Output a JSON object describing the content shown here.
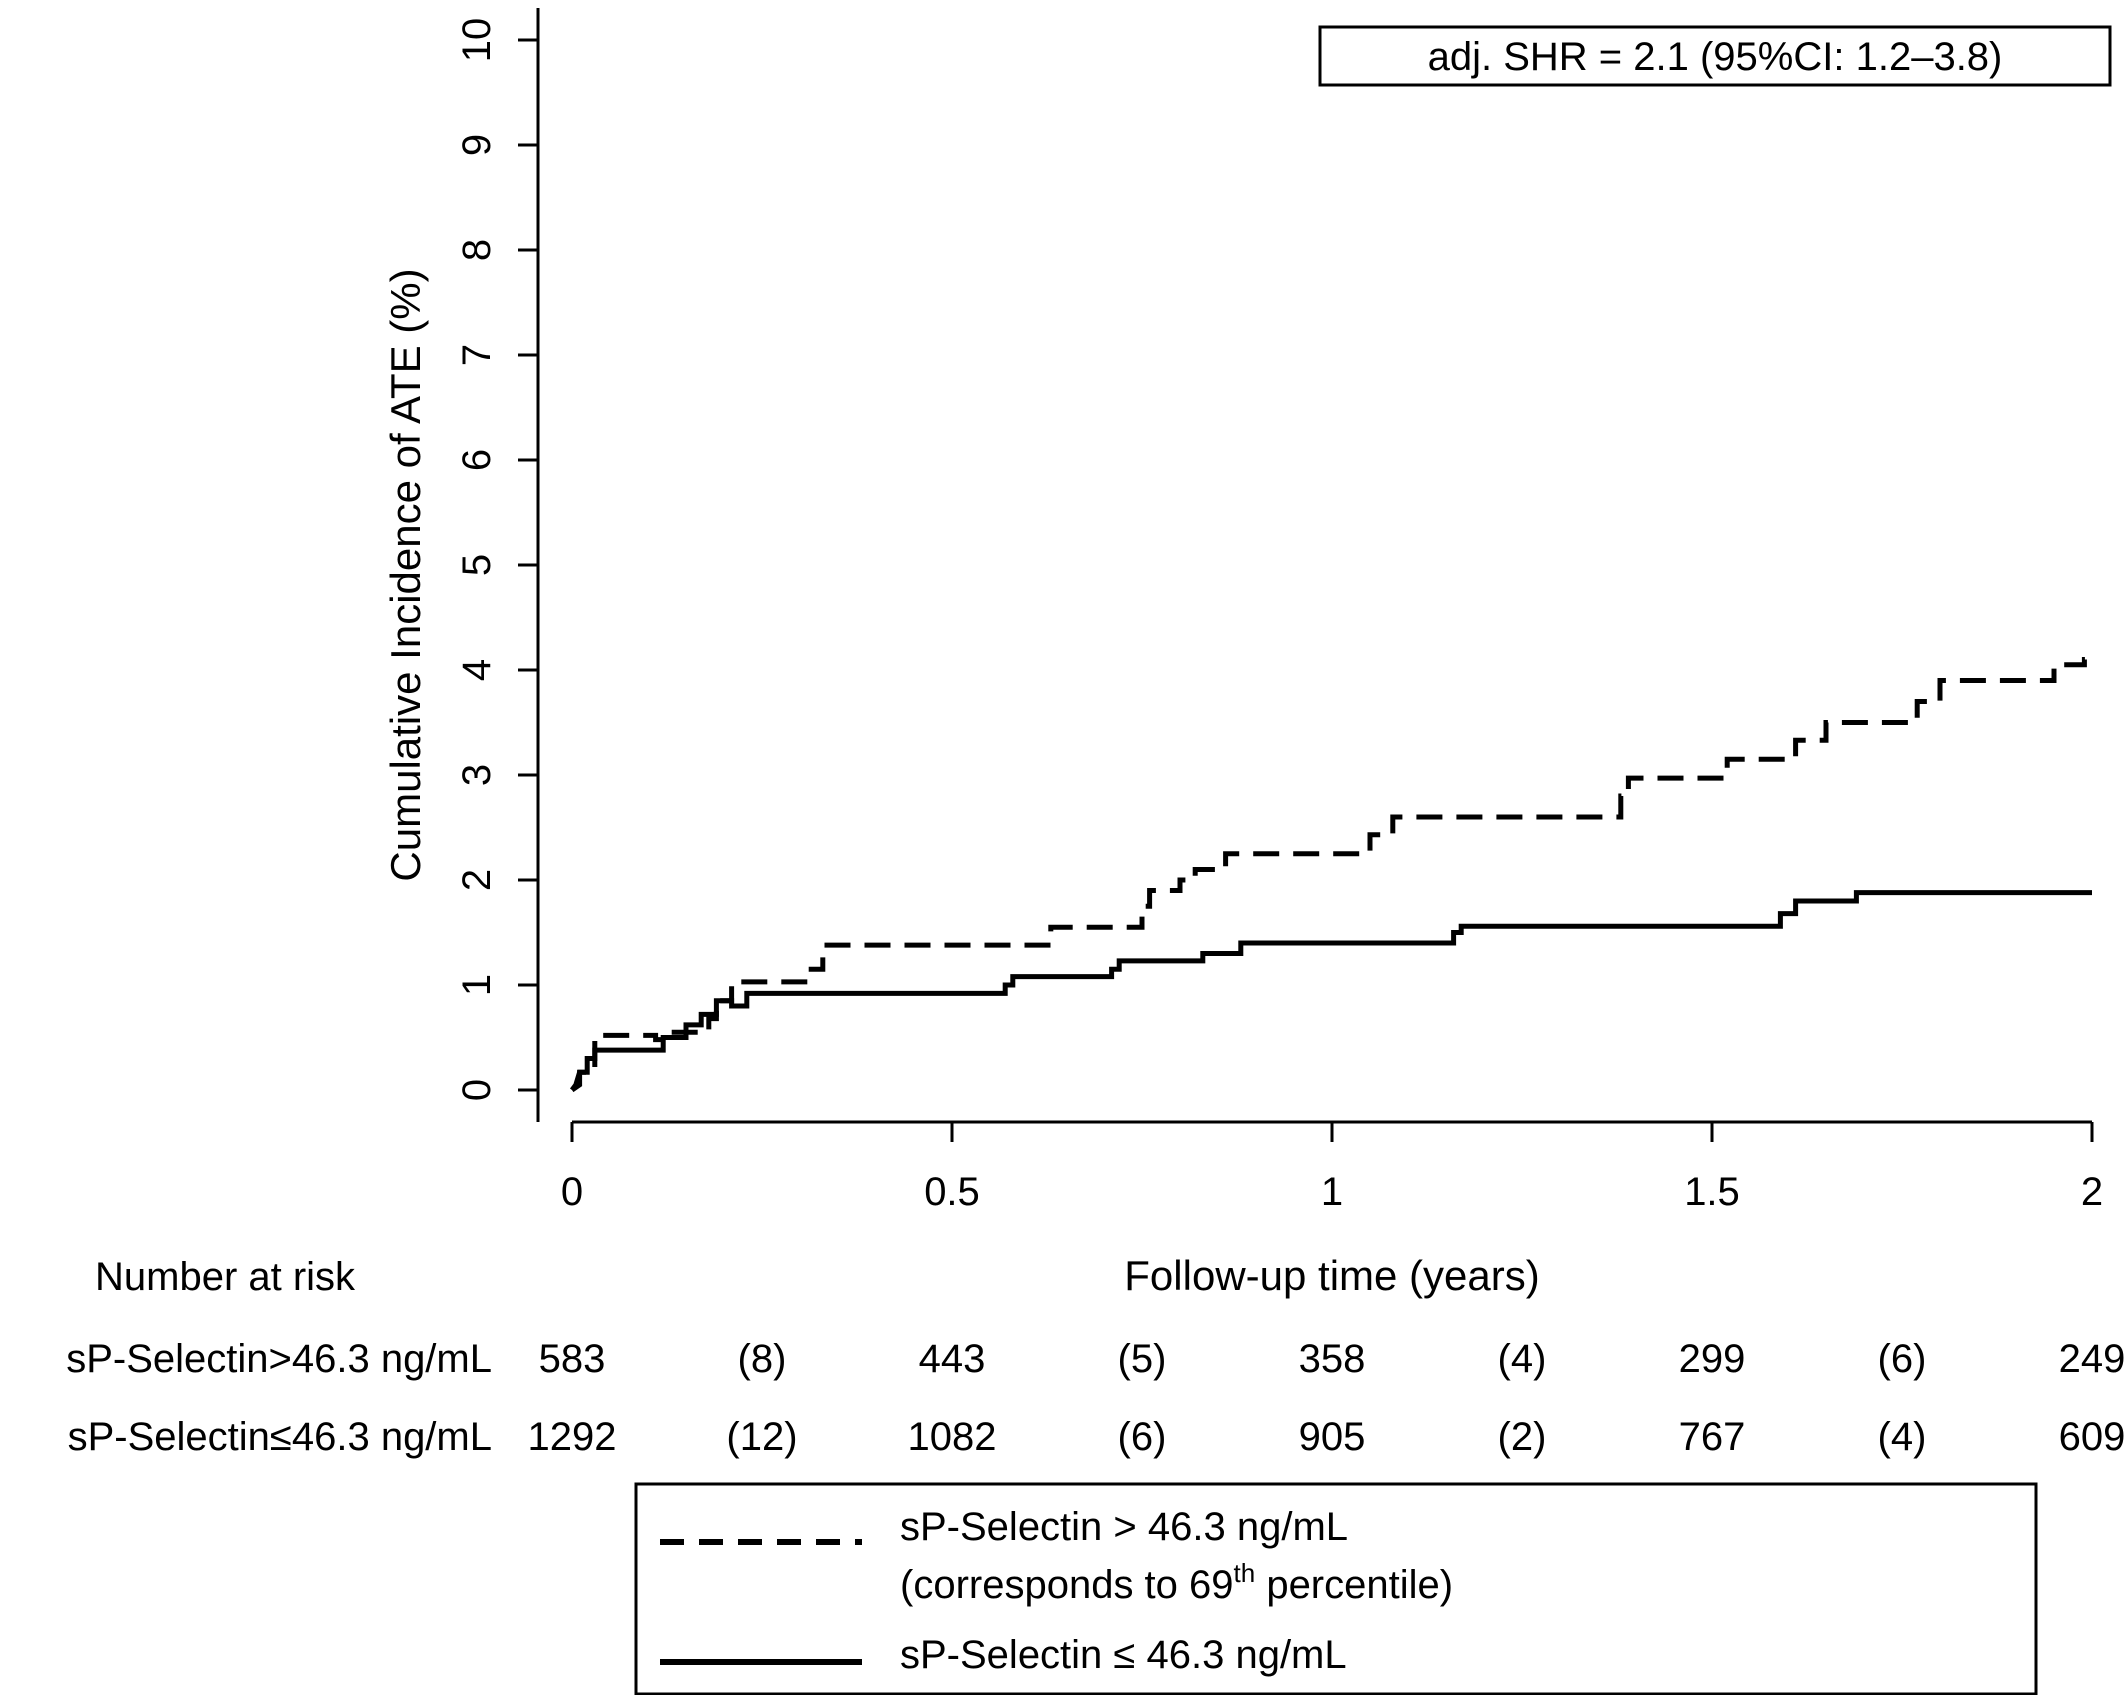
{
  "chart_data": {
    "type": "line",
    "title": "",
    "xlabel": "Follow-up time (years)",
    "ylabel": "Cumulative Incidence of ATE (%)",
    "xlim": [
      0,
      2
    ],
    "ylim": [
      0,
      10
    ],
    "xticks": [
      {
        "value": 0,
        "label": "0"
      },
      {
        "value": 0.5,
        "label": "0.5"
      },
      {
        "value": 1,
        "label": "1"
      },
      {
        "value": 1.5,
        "label": "1.5"
      },
      {
        "value": 2,
        "label": "2"
      }
    ],
    "yticks": [
      {
        "value": 0,
        "label": "0"
      },
      {
        "value": 1,
        "label": "1"
      },
      {
        "value": 2,
        "label": "2"
      },
      {
        "value": 3,
        "label": "3"
      },
      {
        "value": 4,
        "label": "4"
      },
      {
        "value": 5,
        "label": "5"
      },
      {
        "value": 6,
        "label": "6"
      },
      {
        "value": 7,
        "label": "7"
      },
      {
        "value": 8,
        "label": "8"
      },
      {
        "value": 9,
        "label": "9"
      },
      {
        "value": 10,
        "label": "10"
      }
    ],
    "grid": false,
    "annotation": "adj. SHR = 2.1 (95%CI: 1.2–3.8)",
    "series": [
      {
        "line_style": "dashed",
        "points": [
          [
            0,
            0
          ],
          [
            0.005,
            0.05
          ],
          [
            0.01,
            0.17
          ],
          [
            0.03,
            0.17
          ],
          [
            0.03,
            0.52
          ],
          [
            0.11,
            0.52
          ],
          [
            0.11,
            0.48
          ],
          [
            0.13,
            0.48
          ],
          [
            0.13,
            0.55
          ],
          [
            0.18,
            0.55
          ],
          [
            0.18,
            0.68
          ],
          [
            0.19,
            0.68
          ],
          [
            0.19,
            0.85
          ],
          [
            0.21,
            0.85
          ],
          [
            0.21,
            1.03
          ],
          [
            0.31,
            1.03
          ],
          [
            0.31,
            1.15
          ],
          [
            0.33,
            1.15
          ],
          [
            0.33,
            1.38
          ],
          [
            0.63,
            1.38
          ],
          [
            0.63,
            1.55
          ],
          [
            0.75,
            1.55
          ],
          [
            0.75,
            1.75
          ],
          [
            0.76,
            1.75
          ],
          [
            0.76,
            1.9
          ],
          [
            0.8,
            1.9
          ],
          [
            0.8,
            2.0
          ],
          [
            0.82,
            2.0
          ],
          [
            0.82,
            2.1
          ],
          [
            0.86,
            2.1
          ],
          [
            0.86,
            2.25
          ],
          [
            1.05,
            2.25
          ],
          [
            1.05,
            2.43
          ],
          [
            1.08,
            2.43
          ],
          [
            1.08,
            2.6
          ],
          [
            1.38,
            2.6
          ],
          [
            1.38,
            2.8
          ],
          [
            1.39,
            2.8
          ],
          [
            1.39,
            2.97
          ],
          [
            1.52,
            2.97
          ],
          [
            1.52,
            3.15
          ],
          [
            1.61,
            3.15
          ],
          [
            1.61,
            3.33
          ],
          [
            1.65,
            3.33
          ],
          [
            1.65,
            3.5
          ],
          [
            1.77,
            3.5
          ],
          [
            1.77,
            3.7
          ],
          [
            1.8,
            3.7
          ],
          [
            1.8,
            3.9
          ],
          [
            1.95,
            3.9
          ],
          [
            1.95,
            4.05
          ],
          [
            1.99,
            4.05
          ],
          [
            1.99,
            4.1
          ],
          [
            2.0,
            4.1
          ]
        ]
      },
      {
        "line_style": "solid",
        "points": [
          [
            0,
            0
          ],
          [
            0.01,
            0.05
          ],
          [
            0.01,
            0.17
          ],
          [
            0.02,
            0.17
          ],
          [
            0.02,
            0.3
          ],
          [
            0.03,
            0.3
          ],
          [
            0.03,
            0.38
          ],
          [
            0.12,
            0.38
          ],
          [
            0.12,
            0.5
          ],
          [
            0.15,
            0.5
          ],
          [
            0.15,
            0.62
          ],
          [
            0.17,
            0.62
          ],
          [
            0.17,
            0.72
          ],
          [
            0.19,
            0.72
          ],
          [
            0.19,
            0.85
          ],
          [
            0.21,
            0.85
          ],
          [
            0.21,
            0.8
          ],
          [
            0.23,
            0.8
          ],
          [
            0.23,
            0.92
          ],
          [
            0.57,
            0.92
          ],
          [
            0.57,
            1.0
          ],
          [
            0.58,
            1.0
          ],
          [
            0.58,
            1.08
          ],
          [
            0.71,
            1.08
          ],
          [
            0.71,
            1.15
          ],
          [
            0.72,
            1.15
          ],
          [
            0.72,
            1.23
          ],
          [
            0.83,
            1.23
          ],
          [
            0.83,
            1.3
          ],
          [
            0.88,
            1.3
          ],
          [
            0.88,
            1.4
          ],
          [
            1.16,
            1.4
          ],
          [
            1.16,
            1.5
          ],
          [
            1.17,
            1.5
          ],
          [
            1.17,
            1.56
          ],
          [
            1.59,
            1.56
          ],
          [
            1.59,
            1.68
          ],
          [
            1.61,
            1.68
          ],
          [
            1.61,
            1.8
          ],
          [
            1.69,
            1.8
          ],
          [
            1.69,
            1.88
          ],
          [
            2.0,
            1.88
          ]
        ]
      }
    ],
    "legend": {
      "position": "bottom",
      "entries": [
        {
          "style": "dashed",
          "line1": "sP-Selectin > 46.3 ng/mL",
          "line2_prefix": "(corresponds to 69",
          "line2_sup": "th",
          "line2_suffix": " percentile)"
        },
        {
          "style": "solid",
          "line1": "sP-Selectin ≤ 46.3 ng/mL"
        }
      ]
    },
    "risk_table": {
      "title": "Number at risk",
      "rows": [
        {
          "label": "sP-Selectin>46.3 ng/mL",
          "values": [
            "583",
            "(8)",
            "443",
            "(5)",
            "358",
            "(4)",
            "299",
            "(6)",
            "249"
          ]
        },
        {
          "label": "sP-Selectin≤46.3 ng/mL",
          "values": [
            "1292",
            "(12)",
            "1082",
            "(6)",
            "905",
            "(2)",
            "767",
            "(4)",
            "609"
          ]
        }
      ]
    }
  }
}
